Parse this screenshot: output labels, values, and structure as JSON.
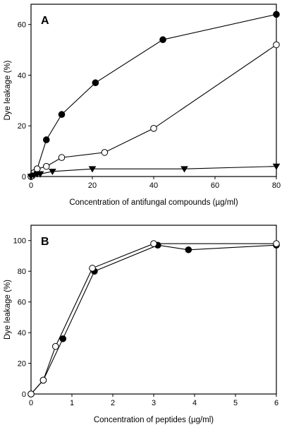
{
  "chart_data": [
    {
      "type": "scatter",
      "panel_label": "A",
      "xlabel": "Concentration of antifungal compounds  (µg/ml)",
      "ylabel": "Dye leakage (%)",
      "xlim": [
        0,
        80
      ],
      "ylim": [
        0,
        68
      ],
      "xticks": [
        0,
        20,
        40,
        60,
        80
      ],
      "yticks": [
        0,
        20,
        40,
        60
      ],
      "grid": false,
      "legend": "none",
      "series": [
        {
          "marker": "filled-circle",
          "x": [
            0,
            1,
            2,
            5,
            10,
            21,
            43,
            80
          ],
          "y": [
            0,
            1.5,
            3,
            14.5,
            24.5,
            37,
            54,
            64
          ]
        },
        {
          "marker": "open-circle",
          "x": [
            0,
            1,
            2,
            5,
            10,
            24,
            40,
            80
          ],
          "y": [
            0,
            1.5,
            3,
            4,
            7.5,
            9.5,
            19,
            52
          ]
        },
        {
          "marker": "filled-triangle-down",
          "x": [
            0,
            1,
            2,
            3,
            7,
            20,
            50,
            80
          ],
          "y": [
            0,
            0.5,
            1,
            1,
            2,
            3,
            3,
            4
          ]
        }
      ]
    },
    {
      "type": "line",
      "panel_label": "B",
      "xlabel": "Concentration of peptides (µg/ml)",
      "ylabel": "Dye leakage (%)",
      "xlim": [
        0,
        6
      ],
      "ylim": [
        0,
        110
      ],
      "xticks": [
        0,
        1,
        2,
        3,
        4,
        5,
        6
      ],
      "yticks": [
        0,
        20,
        40,
        60,
        80,
        100
      ],
      "grid": false,
      "legend": "none",
      "series": [
        {
          "marker": "filled-circle",
          "x": [
            0,
            0.3,
            0.78,
            1.55,
            3.1,
            3.85,
            6
          ],
          "y": [
            0,
            9,
            36,
            80,
            97,
            94,
            97
          ]
        },
        {
          "marker": "open-circle",
          "x": [
            0,
            0.3,
            0.6,
            1.5,
            3.0,
            6
          ],
          "y": [
            0,
            9,
            31,
            82,
            98,
            98
          ]
        }
      ]
    }
  ]
}
